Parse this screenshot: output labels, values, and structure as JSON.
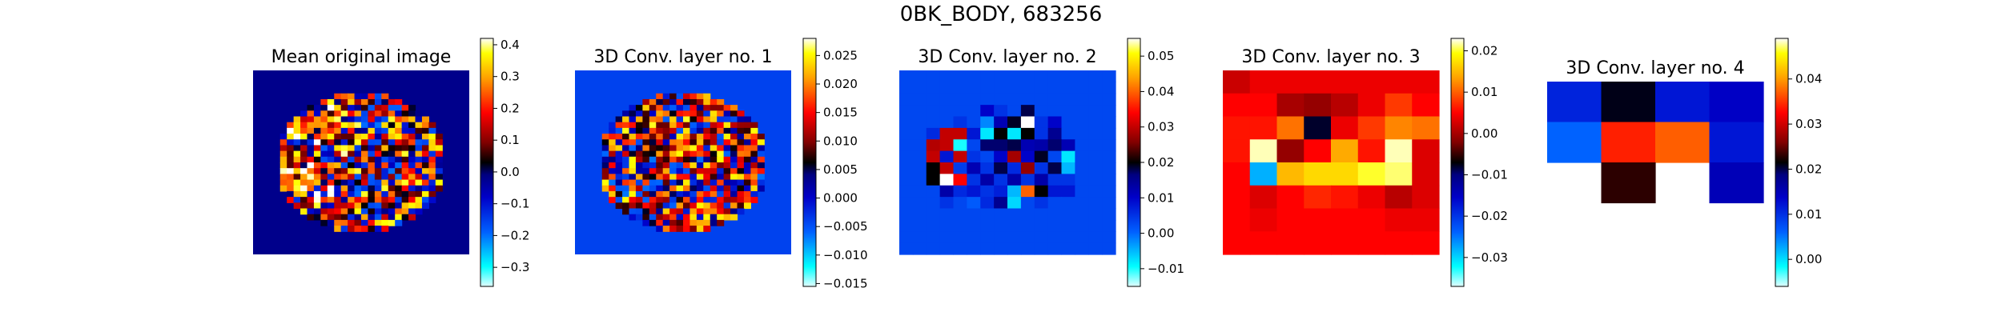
{
  "suptitle": "0BK_BODY, 683256",
  "colors": {
    "background": "#ffffff",
    "axis": "#000000",
    "colormap": "jet-hot diverging (cyan-blue-navy-black-darkred-red-orange-yellow-white)"
  },
  "chart_data": [
    {
      "type": "heatmap",
      "title": "Mean original image",
      "grid_size": [
        32,
        32
      ],
      "background_value": -0.02,
      "content": "circular region of noisy values, brighter reds/yellows toward the left edge",
      "colorbar": {
        "ticks": [
          -0.3,
          -0.2,
          -0.1,
          0.0,
          0.1,
          0.2,
          0.3,
          0.4
        ],
        "tick_labels": [
          "−0.3",
          "−0.2",
          "−0.1",
          "0.0",
          "0.1",
          "0.2",
          "0.3",
          "0.4"
        ],
        "range": [
          -0.36,
          0.42
        ]
      }
    },
    {
      "type": "heatmap",
      "title": "3D Conv. layer no. 1",
      "grid_size": [
        32,
        32
      ],
      "background_value": -0.004,
      "content": "circular region of mixed blue/red values",
      "colorbar": {
        "ticks": [
          -0.015,
          -0.01,
          -0.005,
          0.0,
          0.005,
          0.01,
          0.015,
          0.02,
          0.025
        ],
        "tick_labels": [
          "−0.015",
          "−0.010",
          "−0.005",
          "0.000",
          "0.005",
          "0.010",
          "0.015",
          "0.020",
          "0.025"
        ],
        "range": [
          -0.0155,
          0.028
        ]
      }
    },
    {
      "type": "heatmap",
      "title": "3D Conv. layer no. 2",
      "grid_size": [
        16,
        16
      ],
      "colorbar": {
        "ticks": [
          -0.01,
          0.0,
          0.01,
          0.02,
          0.03,
          0.04,
          0.05
        ],
        "tick_labels": [
          "−0.01",
          "0.00",
          "0.01",
          "0.02",
          "0.03",
          "0.04",
          "0.05"
        ],
        "range": [
          -0.015,
          0.055
        ]
      },
      "values": [
        [
          0.003,
          0.003,
          0.003,
          0.003,
          0.003,
          0.003,
          0.003,
          0.003,
          0.003,
          0.003,
          0.003,
          0.003,
          0.003,
          0.003,
          0.003,
          0.003
        ],
        [
          0.003,
          0.003,
          0.003,
          0.003,
          0.003,
          0.003,
          0.003,
          0.003,
          0.003,
          0.003,
          0.003,
          0.003,
          0.003,
          0.003,
          0.003,
          0.003
        ],
        [
          0.003,
          0.003,
          0.003,
          0.003,
          0.003,
          0.003,
          0.003,
          0.003,
          0.003,
          0.003,
          0.003,
          0.003,
          0.003,
          0.003,
          0.003,
          0.003
        ],
        [
          0.003,
          0.003,
          0.003,
          0.003,
          0.003,
          0.003,
          0.01,
          0.005,
          0.003,
          0.018,
          0.003,
          0.003,
          0.003,
          0.003,
          0.003,
          0.003
        ],
        [
          0.003,
          0.003,
          0.003,
          0.003,
          0.005,
          0.003,
          -0.002,
          0.012,
          0.019,
          0.055,
          0.005,
          0.01,
          0.003,
          0.003,
          0.003,
          0.003
        ],
        [
          0.003,
          0.003,
          0.006,
          0.03,
          0.03,
          0.008,
          -0.008,
          0.02,
          -0.008,
          0.02,
          0.005,
          0.015,
          0.003,
          0.003,
          0.003,
          0.003
        ],
        [
          0.003,
          0.003,
          0.029,
          0.03,
          -0.01,
          0.003,
          0.017,
          0.017,
          0.018,
          0.012,
          0.013,
          0.017,
          0.012,
          0.003,
          0.003,
          0.003
        ],
        [
          0.003,
          0.003,
          0.03,
          0.008,
          0.03,
          0.005,
          0.003,
          0.01,
          0.028,
          0.01,
          0.019,
          0.003,
          -0.008,
          0.003,
          0.003,
          0.003
        ],
        [
          0.003,
          0.003,
          0.02,
          0.03,
          0.004,
          0.012,
          0.005,
          0.018,
          0.006,
          0.027,
          0.005,
          0.018,
          -0.005,
          0.003,
          0.003,
          0.003
        ],
        [
          0.003,
          0.003,
          0.02,
          0.055,
          0.034,
          0.005,
          0.013,
          0.005,
          0.013,
          0.005,
          0.013,
          0.005,
          0.005,
          0.003,
          0.003,
          0.003
        ],
        [
          0.003,
          0.003,
          0.003,
          0.013,
          0.006,
          0.008,
          0.005,
          0.007,
          -0.005,
          0.04,
          0.02,
          0.008,
          0.008,
          0.003,
          0.003,
          0.003
        ],
        [
          0.003,
          0.003,
          0.003,
          0.005,
          0.003,
          0.001,
          0.006,
          0.015,
          -0.007,
          0.003,
          0.005,
          0.003,
          0.003,
          0.003,
          0.003,
          0.003
        ],
        [
          0.003,
          0.003,
          0.003,
          0.003,
          0.003,
          0.003,
          0.003,
          0.003,
          0.003,
          0.003,
          0.003,
          0.003,
          0.003,
          0.003,
          0.003,
          0.003
        ],
        [
          0.003,
          0.003,
          0.003,
          0.003,
          0.003,
          0.003,
          0.003,
          0.003,
          0.003,
          0.003,
          0.003,
          0.003,
          0.003,
          0.003,
          0.003,
          0.003
        ],
        [
          0.003,
          0.003,
          0.003,
          0.003,
          0.003,
          0.003,
          0.003,
          0.003,
          0.003,
          0.003,
          0.003,
          0.003,
          0.003,
          0.003,
          0.003,
          0.003
        ],
        [
          0.003,
          0.003,
          0.003,
          0.003,
          0.003,
          0.003,
          0.003,
          0.003,
          0.003,
          0.003,
          0.003,
          0.003,
          0.003,
          0.003,
          0.003,
          0.003
        ]
      ]
    },
    {
      "type": "heatmap",
      "title": "3D Conv. layer no. 3",
      "grid_size": [
        8,
        8
      ],
      "colorbar": {
        "ticks": [
          -0.03,
          -0.02,
          -0.01,
          0.0,
          0.01,
          0.02
        ],
        "tick_labels": [
          "−0.03",
          "−0.02",
          "−0.01",
          "0.00",
          "0.01",
          "0.02"
        ],
        "range": [
          -0.037,
          0.023
        ]
      },
      "values": [
        [
          0.002,
          0.004,
          0.004,
          0.004,
          0.004,
          0.004,
          0.004,
          0.004
        ],
        [
          0.005,
          0.005,
          0.0,
          -0.001,
          0.001,
          0.004,
          0.008,
          0.005
        ],
        [
          0.006,
          0.006,
          0.011,
          -0.008,
          0.004,
          0.008,
          0.012,
          0.011
        ],
        [
          0.006,
          0.022,
          -0.001,
          0.005,
          0.014,
          0.006,
          0.022,
          0.003
        ],
        [
          0.005,
          -0.028,
          0.015,
          0.017,
          0.017,
          0.02,
          0.021,
          0.003
        ],
        [
          0.005,
          0.003,
          0.005,
          0.007,
          0.006,
          0.004,
          0.001,
          0.003
        ],
        [
          0.005,
          0.004,
          0.005,
          0.005,
          0.005,
          0.005,
          0.004,
          0.004
        ],
        [
          0.005,
          0.005,
          0.005,
          0.005,
          0.005,
          0.005,
          0.005,
          0.005
        ]
      ]
    },
    {
      "type": "heatmap",
      "title": "3D Conv. layer no. 4",
      "grid_size": [
        4,
        4
      ],
      "colorbar": {
        "ticks": [
          0.0,
          0.01,
          0.02,
          0.03,
          0.04
        ],
        "tick_labels": [
          "0.00",
          "0.01",
          "0.02",
          "0.03",
          "0.04"
        ],
        "range": [
          -0.006,
          0.049
        ]
      },
      "values": [
        [
          0.011,
          0.021,
          0.012,
          0.014
        ],
        [
          0.006,
          0.034,
          0.037,
          0.012
        ],
        [
          null,
          0.023,
          null,
          0.015
        ],
        [
          null,
          null,
          null,
          null
        ]
      ]
    }
  ]
}
